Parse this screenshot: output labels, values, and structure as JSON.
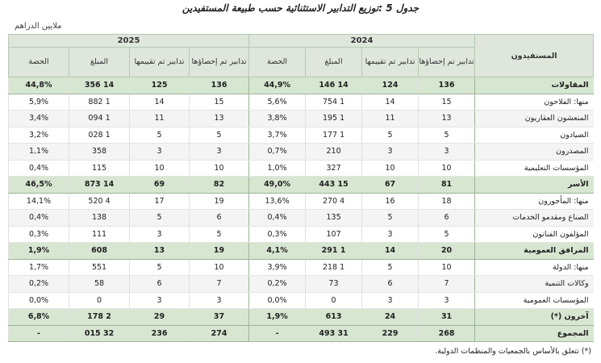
{
  "title": "جدول 5 :توزيع التدابير الاستثنائية حسب طبيعة المستفيدين",
  "unit": "ملايين الدراهم",
  "table": {
    "header": {
      "beneficiaries": "المستفيدون",
      "groups": [
        "2024",
        "2025"
      ],
      "columns": [
        "تدابير تم إحصاؤها",
        "تدابير تم تقييمها",
        "المبلغ",
        "الحصة"
      ]
    },
    "highlighted_rows": [
      0,
      6,
      10,
      14,
      15
    ],
    "rows": [
      [
        "المقاولات",
        "136",
        "124",
        "14 146",
        "44,9%",
        "136",
        "125",
        "14 356",
        "44,8%"
      ],
      [
        "منها: الفلاحون",
        "15",
        "14",
        "1 754",
        "5,6%",
        "15",
        "14",
        "1 882",
        "5,9%"
      ],
      [
        "المنعشون العقاريون",
        "13",
        "11",
        "1 195",
        "3,8%",
        "13",
        "11",
        "1 094",
        "3,4%"
      ],
      [
        "الصيادون",
        "5",
        "5",
        "1 177",
        "3,7%",
        "5",
        "5",
        "1 028",
        "3,2%"
      ],
      [
        "المصدرون",
        "3",
        "3",
        "210",
        "0,7%",
        "3",
        "3",
        "358",
        "1,1%"
      ],
      [
        "المؤسسات التعليمية",
        "10",
        "10",
        "327",
        "1,0%",
        "10",
        "10",
        "115",
        "0,4%"
      ],
      [
        "الأسر",
        "81",
        "67",
        "15 443",
        "49,0%",
        "82",
        "69",
        "14 873",
        "46,5%"
      ],
      [
        "منها: المأجورون",
        "18",
        "16",
        "4 270",
        "13,6%",
        "19",
        "17",
        "4 520",
        "14,1%"
      ],
      [
        "الصناع ومقدمو الخدمات",
        "6",
        "5",
        "135",
        "0,4%",
        "6",
        "5",
        "138",
        "0,4%"
      ],
      [
        "المؤلفون الفنانون",
        "5",
        "3",
        "107",
        "0,3%",
        "5",
        "3",
        "111",
        "0,3%"
      ],
      [
        "المرافق العمومية",
        "20",
        "14",
        "1 291",
        "4,1%",
        "19",
        "13",
        "608",
        "1,9%"
      ],
      [
        "منها: الدولة",
        "10",
        "5",
        "1 218",
        "3,9%",
        "10",
        "5",
        "551",
        "1,7%"
      ],
      [
        "وكالات التنمية",
        "7",
        "6",
        "73",
        "0,2%",
        "7",
        "6",
        "58",
        "0,2%"
      ],
      [
        "المؤسسات العمومية",
        "3",
        "3",
        "0",
        "0,0%",
        "3",
        "3",
        "0",
        "0,0%"
      ],
      [
        "آخرون (*)",
        "31",
        "24",
        "613",
        "1,9%",
        "37",
        "29",
        "2 178",
        "6,8%"
      ],
      [
        "المجموع",
        "268",
        "229",
        "31 493",
        "-",
        "274",
        "236",
        "32 015",
        "-"
      ]
    ]
  },
  "footnote": "(*) تتعلق بالأساس بالجمعيات والمنظمات الدولية."
}
